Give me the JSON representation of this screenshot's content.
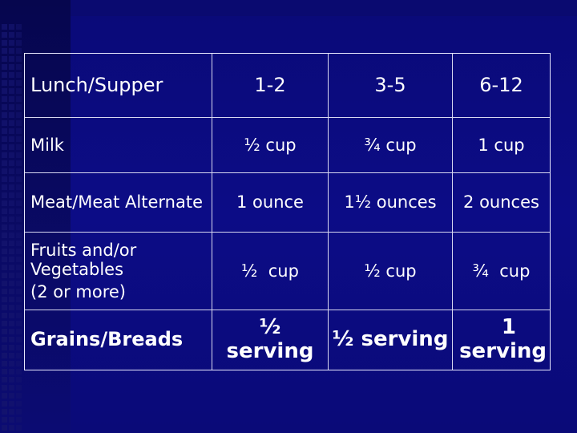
{
  "table": {
    "header": {
      "label": "Lunch/Supper",
      "ages": [
        "1-2",
        "3-5",
        "6-12"
      ]
    },
    "rows": [
      {
        "label": "Milk",
        "values": [
          "½ cup",
          "¾ cup",
          "1 cup"
        ]
      },
      {
        "label": "Meat/Meat Alternate",
        "values": [
          "1 ounce",
          "1½ ounces",
          "2 ounces"
        ]
      },
      {
        "label_lines": [
          "Fruits and/or",
          "Vegetables",
          "(2 or more)"
        ],
        "values": [
          "½  cup",
          "½ cup",
          "¾  cup"
        ]
      },
      {
        "label": "Grains/Breads",
        "values_lines": [
          [
            "½",
            "serving"
          ],
          [
            "½ serving"
          ],
          [
            "1",
            "serving"
          ]
        ]
      }
    ]
  }
}
